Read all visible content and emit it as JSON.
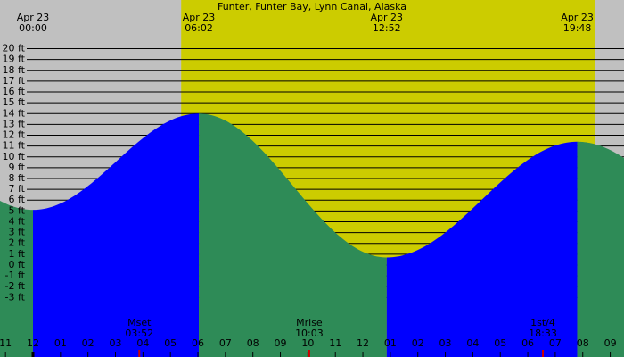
{
  "chart_data": {
    "type": "tide",
    "title": "Funter, Funter Bay, Lynn Canal, Alaska",
    "daylight": [
      5.39,
      20.45
    ],
    "events": [
      {
        "date": "Apr 23",
        "time": "00:00",
        "hour": 0,
        "height": 5.1
      },
      {
        "date": "Apr 23",
        "time": "06:02",
        "hour": 6.033,
        "height": 14.0
      },
      {
        "date": "Apr 23",
        "time": "12:52",
        "hour": 12.867,
        "height": 0.7
      },
      {
        "date": "Apr 23",
        "time": "19:48",
        "hour": 19.8,
        "height": 11.4
      }
    ],
    "moon": [
      {
        "label": "Mset",
        "time": "03:52",
        "hour": 3.867
      },
      {
        "label": "Mrise",
        "time": "10:03",
        "hour": 10.05
      },
      {
        "label": "1st/4",
        "time": "18:33",
        "hour": 18.55
      }
    ],
    "xlim": [
      -1.2,
      21.5
    ],
    "xticks": [
      {
        "value": -1,
        "label": "11"
      },
      {
        "value": 0,
        "label": "12"
      },
      {
        "value": 1,
        "label": "01"
      },
      {
        "value": 2,
        "label": "02"
      },
      {
        "value": 3,
        "label": "03"
      },
      {
        "value": 4,
        "label": "04"
      },
      {
        "value": 5,
        "label": "05"
      },
      {
        "value": 6,
        "label": "06"
      },
      {
        "value": 7,
        "label": "07"
      },
      {
        "value": 8,
        "label": "08"
      },
      {
        "value": 9,
        "label": "09"
      },
      {
        "value": 10,
        "label": "10"
      },
      {
        "value": 11,
        "label": "11"
      },
      {
        "value": 12,
        "label": "12"
      },
      {
        "value": 13,
        "label": "01"
      },
      {
        "value": 14,
        "label": "02"
      },
      {
        "value": 15,
        "label": "03"
      },
      {
        "value": 16,
        "label": "04"
      },
      {
        "value": 17,
        "label": "05"
      },
      {
        "value": 18,
        "label": "06"
      },
      {
        "value": 19,
        "label": "07"
      },
      {
        "value": 20,
        "label": "08"
      },
      {
        "value": 21,
        "label": "09"
      }
    ],
    "ylim": [
      -8.5,
      24.5
    ],
    "yticks": [
      {
        "value": 20,
        "label": "20 ft"
      },
      {
        "value": 19,
        "label": "19 ft"
      },
      {
        "value": 18,
        "label": "18 ft"
      },
      {
        "value": 17,
        "label": "17 ft"
      },
      {
        "value": 16,
        "label": "16 ft"
      },
      {
        "value": 15,
        "label": "15 ft"
      },
      {
        "value": 14,
        "label": "14 ft"
      },
      {
        "value": 13,
        "label": "13 ft"
      },
      {
        "value": 12,
        "label": "12 ft"
      },
      {
        "value": 11,
        "label": "11 ft"
      },
      {
        "value": 10,
        "label": "10 ft"
      },
      {
        "value": 9,
        "label": "9 ft"
      },
      {
        "value": 8,
        "label": "8 ft"
      },
      {
        "value": 7,
        "label": "7 ft"
      },
      {
        "value": 6,
        "label": "6 ft"
      },
      {
        "value": 5,
        "label": "5 ft"
      },
      {
        "value": 4,
        "label": "4 ft"
      },
      {
        "value": 3,
        "label": "3 ft"
      },
      {
        "value": 2,
        "label": "2 ft"
      },
      {
        "value": 1,
        "label": "1 ft"
      },
      {
        "value": 0,
        "label": "0 ft"
      },
      {
        "value": -1,
        "label": "-1 ft"
      },
      {
        "value": -2,
        "label": "-2 ft"
      },
      {
        "value": -3,
        "label": "-3 ft"
      }
    ],
    "colors": {
      "night": "#c0c0c0",
      "day": "#cccc00",
      "flood": "#0000ff",
      "ebb": "#2e8b57"
    }
  }
}
